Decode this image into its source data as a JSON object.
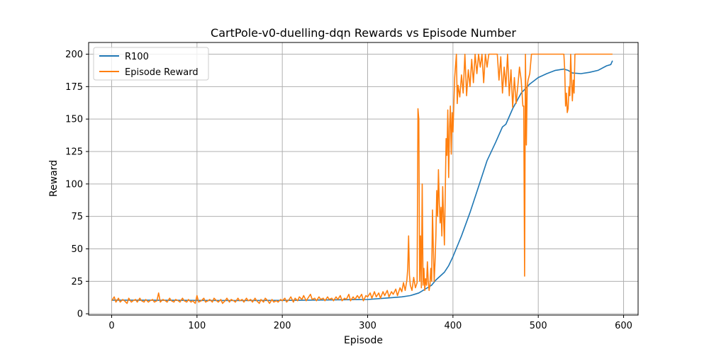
{
  "chart_data": {
    "type": "line",
    "title": "CartPole-v0-duelling-dqn Rewards vs Episode Number",
    "xlabel": "Episode",
    "ylabel": "Reward",
    "xlim": [
      -27,
      617
    ],
    "ylim": [
      -1,
      209
    ],
    "x_ticks": [
      0,
      100,
      200,
      300,
      400,
      500,
      600
    ],
    "y_ticks": [
      0,
      25,
      50,
      75,
      100,
      125,
      150,
      175,
      200
    ],
    "grid": true,
    "legend_position": "top-left",
    "series": [
      {
        "name": "R100",
        "color": "#1f77b4",
        "points": [
          [
            0,
            10.5
          ],
          [
            50,
            10.4
          ],
          [
            100,
            10.3
          ],
          [
            150,
            10.2
          ],
          [
            200,
            10.3
          ],
          [
            250,
            10.6
          ],
          [
            300,
            11
          ],
          [
            320,
            12
          ],
          [
            340,
            13
          ],
          [
            350,
            14
          ],
          [
            355,
            15
          ],
          [
            360,
            16
          ],
          [
            365,
            18
          ],
          [
            370,
            20
          ],
          [
            375,
            22
          ],
          [
            380,
            26
          ],
          [
            385,
            29
          ],
          [
            390,
            32
          ],
          [
            395,
            37
          ],
          [
            400,
            44
          ],
          [
            410,
            60
          ],
          [
            420,
            78
          ],
          [
            430,
            98
          ],
          [
            440,
            118
          ],
          [
            450,
            132
          ],
          [
            458,
            144
          ],
          [
            462,
            146
          ],
          [
            470,
            158
          ],
          [
            480,
            170
          ],
          [
            490,
            177
          ],
          [
            500,
            182
          ],
          [
            510,
            185
          ],
          [
            520,
            187.5
          ],
          [
            530,
            188.5
          ],
          [
            535,
            187.5
          ],
          [
            540,
            185.5
          ],
          [
            550,
            185
          ],
          [
            560,
            186
          ],
          [
            570,
            187.5
          ],
          [
            580,
            191
          ],
          [
            585,
            192
          ],
          [
            587,
            195
          ]
        ]
      },
      {
        "name": "Episode Reward",
        "color": "#ff7f0e",
        "points": [
          [
            0,
            10
          ],
          [
            3,
            13
          ],
          [
            5,
            9
          ],
          [
            8,
            12
          ],
          [
            10,
            9
          ],
          [
            13,
            11
          ],
          [
            15,
            10
          ],
          [
            18,
            8
          ],
          [
            20,
            12
          ],
          [
            23,
            9
          ],
          [
            25,
            10
          ],
          [
            28,
            11
          ],
          [
            30,
            9
          ],
          [
            33,
            12
          ],
          [
            35,
            10
          ],
          [
            38,
            9
          ],
          [
            40,
            11
          ],
          [
            43,
            9
          ],
          [
            45,
            10
          ],
          [
            48,
            11
          ],
          [
            50,
            9
          ],
          [
            53,
            10
          ],
          [
            55,
            16
          ],
          [
            57,
            9
          ],
          [
            60,
            11
          ],
          [
            63,
            10
          ],
          [
            65,
            9
          ],
          [
            68,
            12
          ],
          [
            70,
            10
          ],
          [
            73,
            9
          ],
          [
            75,
            11
          ],
          [
            78,
            10
          ],
          [
            80,
            9
          ],
          [
            83,
            12
          ],
          [
            85,
            10
          ],
          [
            88,
            9
          ],
          [
            90,
            11
          ],
          [
            93,
            9
          ],
          [
            95,
            10
          ],
          [
            98,
            8
          ],
          [
            100,
            14
          ],
          [
            102,
            9
          ],
          [
            105,
            10
          ],
          [
            108,
            12
          ],
          [
            110,
            9
          ],
          [
            113,
            10
          ],
          [
            115,
            11
          ],
          [
            118,
            9
          ],
          [
            120,
            12
          ],
          [
            123,
            10
          ],
          [
            125,
            9
          ],
          [
            128,
            11
          ],
          [
            130,
            8
          ],
          [
            133,
            10
          ],
          [
            135,
            12
          ],
          [
            138,
            9
          ],
          [
            140,
            11
          ],
          [
            143,
            10
          ],
          [
            145,
            9
          ],
          [
            148,
            12
          ],
          [
            150,
            10
          ],
          [
            153,
            11
          ],
          [
            155,
            9
          ],
          [
            158,
            12
          ],
          [
            160,
            10
          ],
          [
            163,
            11
          ],
          [
            165,
            9
          ],
          [
            168,
            12
          ],
          [
            170,
            10
          ],
          [
            173,
            8
          ],
          [
            175,
            11
          ],
          [
            178,
            9
          ],
          [
            180,
            12
          ],
          [
            183,
            10
          ],
          [
            185,
            8
          ],
          [
            188,
            11
          ],
          [
            190,
            9
          ],
          [
            193,
            10
          ],
          [
            195,
            9
          ],
          [
            198,
            11
          ],
          [
            200,
            10
          ],
          [
            203,
            12
          ],
          [
            205,
            9
          ],
          [
            208,
            11
          ],
          [
            210,
            13
          ],
          [
            213,
            9
          ],
          [
            215,
            12
          ],
          [
            218,
            10
          ],
          [
            220,
            13
          ],
          [
            223,
            11
          ],
          [
            225,
            14
          ],
          [
            228,
            10
          ],
          [
            230,
            12
          ],
          [
            233,
            15
          ],
          [
            235,
            11
          ],
          [
            238,
            12
          ],
          [
            240,
            10
          ],
          [
            243,
            13
          ],
          [
            245,
            11
          ],
          [
            248,
            12
          ],
          [
            250,
            10
          ],
          [
            253,
            13
          ],
          [
            255,
            11
          ],
          [
            258,
            12
          ],
          [
            260,
            10
          ],
          [
            263,
            13
          ],
          [
            265,
            11
          ],
          [
            268,
            14
          ],
          [
            270,
            10
          ],
          [
            273,
            12
          ],
          [
            275,
            11
          ],
          [
            278,
            15
          ],
          [
            280,
            10
          ],
          [
            283,
            13
          ],
          [
            285,
            11
          ],
          [
            288,
            14
          ],
          [
            290,
            12
          ],
          [
            293,
            15
          ],
          [
            295,
            10
          ],
          [
            298,
            14
          ],
          [
            300,
            13
          ],
          [
            303,
            16
          ],
          [
            305,
            12
          ],
          [
            308,
            17
          ],
          [
            310,
            13
          ],
          [
            313,
            16
          ],
          [
            315,
            12
          ],
          [
            318,
            17
          ],
          [
            320,
            14
          ],
          [
            323,
            18
          ],
          [
            325,
            13
          ],
          [
            328,
            17
          ],
          [
            330,
            15
          ],
          [
            333,
            19
          ],
          [
            335,
            14
          ],
          [
            338,
            20
          ],
          [
            340,
            17
          ],
          [
            342,
            24
          ],
          [
            344,
            18
          ],
          [
            346,
            26
          ],
          [
            347,
            35
          ],
          [
            348,
            60
          ],
          [
            349,
            30
          ],
          [
            350,
            22
          ],
          [
            352,
            18
          ],
          [
            354,
            28
          ],
          [
            356,
            20
          ],
          [
            358,
            24
          ],
          [
            359,
            158
          ],
          [
            360,
            150
          ],
          [
            361,
            25
          ],
          [
            362,
            60
          ],
          [
            363,
            20
          ],
          [
            364,
            100
          ],
          [
            365,
            22
          ],
          [
            366,
            35
          ],
          [
            367,
            18
          ],
          [
            368,
            27
          ],
          [
            369,
            22
          ],
          [
            370,
            40
          ],
          [
            371,
            25
          ],
          [
            372,
            18
          ],
          [
            373,
            22
          ],
          [
            374,
            35
          ],
          [
            375,
            25
          ],
          [
            376,
            80
          ],
          [
            377,
            50
          ],
          [
            378,
            25
          ],
          [
            379,
            40
          ],
          [
            380,
            60
          ],
          [
            381,
            95
          ],
          [
            382,
            75
          ],
          [
            383,
            111
          ],
          [
            384,
            85
          ],
          [
            385,
            70
          ],
          [
            386,
            82
          ],
          [
            387,
            60
          ],
          [
            388,
            98
          ],
          [
            389,
            75
          ],
          [
            390,
            53
          ],
          [
            391,
            92
          ],
          [
            392,
            135
          ],
          [
            393,
            122
          ],
          [
            394,
            157
          ],
          [
            395,
            105
          ],
          [
            396,
            142
          ],
          [
            397,
            160
          ],
          [
            398,
            123
          ],
          [
            399,
            155
          ],
          [
            400,
            140
          ],
          [
            402,
            182
          ],
          [
            404,
            200
          ],
          [
            405,
            162
          ],
          [
            406,
            176
          ],
          [
            408,
            167
          ],
          [
            410,
            184
          ],
          [
            412,
            170
          ],
          [
            414,
            200
          ],
          [
            416,
            168
          ],
          [
            418,
            188
          ],
          [
            420,
            175
          ],
          [
            422,
            196
          ],
          [
            424,
            178
          ],
          [
            426,
            200
          ],
          [
            428,
            185
          ],
          [
            430,
            200
          ],
          [
            432,
            190
          ],
          [
            434,
            200
          ],
          [
            436,
            178
          ],
          [
            438,
            200
          ],
          [
            440,
            190
          ],
          [
            442,
            200
          ],
          [
            450,
            200
          ],
          [
            452,
            200
          ],
          [
            454,
            180
          ],
          [
            456,
            198
          ],
          [
            458,
            170
          ],
          [
            460,
            190
          ],
          [
            462,
            175
          ],
          [
            464,
            200
          ],
          [
            466,
            168
          ],
          [
            468,
            188
          ],
          [
            470,
            159
          ],
          [
            472,
            182
          ],
          [
            474,
            162
          ],
          [
            476,
            175
          ],
          [
            478,
            190
          ],
          [
            480,
            180
          ],
          [
            482,
            160
          ],
          [
            483,
            160
          ],
          [
            484,
            29
          ],
          [
            485,
            200
          ],
          [
            486,
            130
          ],
          [
            487,
            175
          ],
          [
            488,
            180
          ],
          [
            490,
            185
          ],
          [
            492,
            200
          ],
          [
            494,
            200
          ],
          [
            500,
            200
          ],
          [
            510,
            200
          ],
          [
            520,
            200
          ],
          [
            530,
            200
          ],
          [
            531,
            188
          ],
          [
            532,
            160
          ],
          [
            533,
            170
          ],
          [
            534,
            155
          ],
          [
            535,
            158
          ],
          [
            536,
            175
          ],
          [
            537,
            168
          ],
          [
            538,
            200
          ],
          [
            539,
            180
          ],
          [
            540,
            164
          ],
          [
            541,
            180
          ],
          [
            542,
            170
          ],
          [
            543,
            200
          ],
          [
            550,
            200
          ],
          [
            560,
            200
          ],
          [
            570,
            200
          ],
          [
            580,
            200
          ],
          [
            587,
            200
          ]
        ]
      }
    ]
  }
}
